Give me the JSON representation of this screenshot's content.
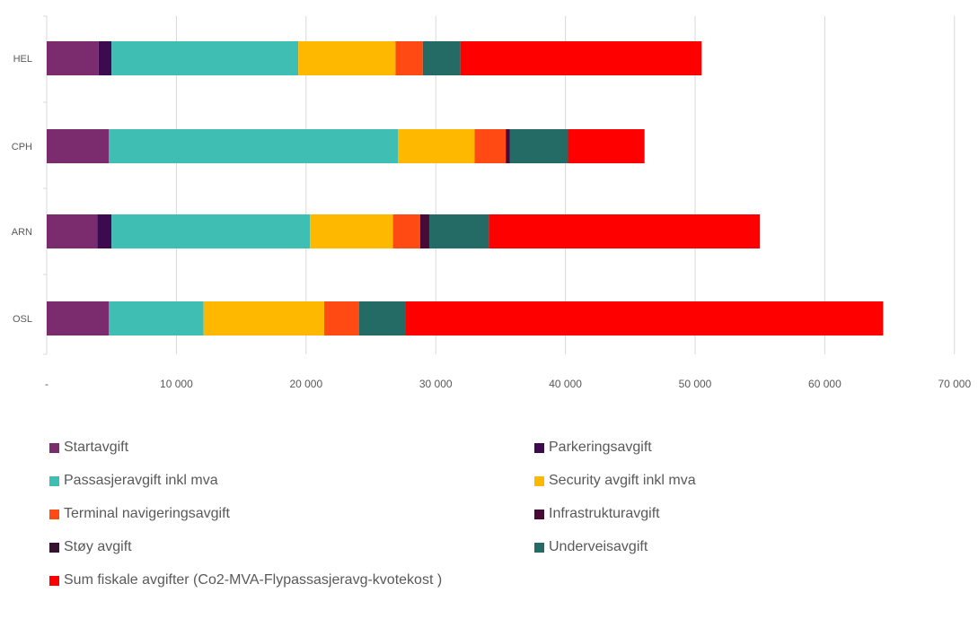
{
  "chart_data": {
    "type": "bar",
    "orientation": "horizontal",
    "stacked": true,
    "categories": [
      "HEL",
      "CPH",
      "ARN",
      "OSL"
    ],
    "xlim": [
      0,
      70000
    ],
    "x_ticks": [
      "-",
      "10 000",
      "20 000",
      "30 000",
      "40 000",
      "50 000",
      "60 000",
      "70 000"
    ],
    "x_tick_values": [
      0,
      10000,
      20000,
      30000,
      40000,
      50000,
      60000,
      70000
    ],
    "grid": "vertical",
    "legend_position": "bottom",
    "series": [
      {
        "name": "Startavgift",
        "color": "#7B2C6E",
        "values": [
          4000,
          4800,
          3900,
          4800
        ]
      },
      {
        "name": "Parkeringsavgift",
        "color": "#3D0A4F",
        "values": [
          1000,
          0,
          1100,
          0
        ]
      },
      {
        "name": "Passasjeravgift inkl mva",
        "color": "#3FBFB4",
        "values": [
          14400,
          22300,
          15300,
          7300
        ]
      },
      {
        "name": "Security avgift inkl mva",
        "color": "#FFB800",
        "values": [
          7500,
          5900,
          6400,
          9300
        ]
      },
      {
        "name": "Terminal navigeringsavgift",
        "color": "#FF4A14",
        "values": [
          2100,
          2400,
          2100,
          2700
        ]
      },
      {
        "name": "Infrastrukturavgift",
        "color": "#4A0A38",
        "values": [
          0,
          300,
          700,
          0
        ]
      },
      {
        "name": "Støy avgift",
        "color": "#3A1030",
        "values": [
          0,
          0,
          0,
          0
        ]
      },
      {
        "name": "Underveisavgift",
        "color": "#236B64",
        "values": [
          2900,
          4500,
          4600,
          3600
        ]
      },
      {
        "name": "Sum fiskale avgifter (Co2-MVA-Flypassasjeravg-kvotekost )",
        "color": "#FF0000",
        "values": [
          18600,
          5900,
          20900,
          36800
        ]
      }
    ]
  }
}
